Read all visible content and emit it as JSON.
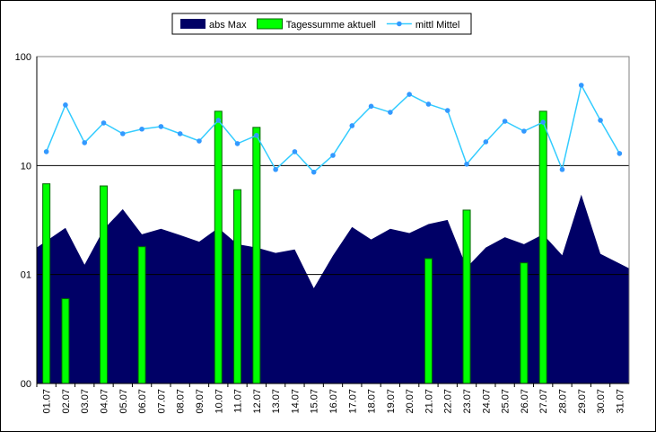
{
  "chart_data": {
    "type": "combo",
    "categories": [
      "01.07",
      "02.07",
      "03.07",
      "04.07",
      "05.07",
      "06.07",
      "07.07",
      "08.07",
      "09.07",
      "10.07",
      "11.07",
      "12.07",
      "13.07",
      "14.07",
      "15.07",
      "16.07",
      "17.07",
      "18.07",
      "19.07",
      "20.07",
      "21.07",
      "22.07",
      "23.07",
      "24.07",
      "25.07",
      "26.07",
      "27.07",
      "28.07",
      "29.07",
      "30.07",
      "31.07"
    ],
    "log_scale": true,
    "grid": true,
    "legend": "top",
    "ylim": [
      0.1,
      100
    ],
    "yticks": [
      100,
      10,
      {
        "value": 1,
        "label": "01"
      },
      {
        "value": 0.1,
        "label": "00"
      }
    ],
    "series": [
      {
        "name": "abs Max",
        "kind": "area",
        "color": "#000066",
        "values": [
          1.77,
          2.68,
          1.23,
          2.6,
          3.98,
          2.34,
          2.63,
          2.3,
          2.0,
          2.68,
          1.9,
          1.77,
          1.58,
          1.7,
          0.75,
          1.49,
          2.73,
          2.1,
          2.63,
          2.4,
          2.9,
          3.17,
          1.16,
          1.77,
          2.2,
          1.9,
          2.34,
          1.5,
          5.4,
          1.55,
          1.14
        ]
      },
      {
        "name": "Tagessumme aktuell",
        "kind": "bar",
        "color": "#00ff00",
        "values": [
          6.8,
          0.6,
          null,
          6.5,
          null,
          1.8,
          null,
          null,
          null,
          31.5,
          6.0,
          22.4,
          null,
          null,
          null,
          null,
          null,
          null,
          null,
          null,
          1.4,
          null,
          3.9,
          null,
          null,
          1.28,
          31.5,
          null,
          null,
          null,
          null
        ]
      },
      {
        "name": "mittl Mittel",
        "kind": "line",
        "color": "#33ccff",
        "values": [
          13.4,
          36,
          16.2,
          24.6,
          19.6,
          21.6,
          22.8,
          19.6,
          16.8,
          26,
          15.9,
          18.9,
          9.2,
          13.4,
          8.7,
          12.4,
          23.2,
          35,
          30.8,
          45,
          36.6,
          32,
          10.3,
          16.5,
          25.5,
          20.7,
          25,
          9.2,
          54.6,
          26,
          12.9
        ]
      }
    ]
  }
}
